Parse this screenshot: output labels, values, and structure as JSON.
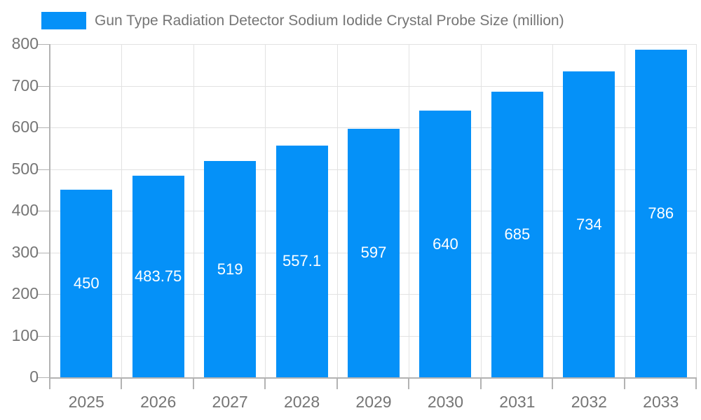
{
  "chart_data": {
    "type": "bar",
    "title": "Gun Type Radiation Detector Sodium Iodide Crystal Probe Size (million)",
    "categories": [
      "2025",
      "2026",
      "2027",
      "2028",
      "2029",
      "2030",
      "2031",
      "2032",
      "2033"
    ],
    "values": [
      450,
      483.75,
      519,
      557.1,
      597,
      640,
      685,
      734,
      786
    ],
    "value_labels": [
      "450",
      "483.75",
      "519",
      "557.1",
      "597",
      "640",
      "685",
      "734",
      "786"
    ],
    "xlabel": "",
    "ylabel": "",
    "ylim": [
      0,
      800
    ],
    "ytick_step": 100,
    "grid": true,
    "legend_position": "top-left",
    "colors": {
      "bar": "#0591f8",
      "bar_value_text": "#ffffff",
      "axis_text": "#757575",
      "legend_text": "#757575",
      "gridline": "#e2e2e2",
      "axis_line": "#b3b3b3",
      "background": "#ffffff"
    }
  }
}
